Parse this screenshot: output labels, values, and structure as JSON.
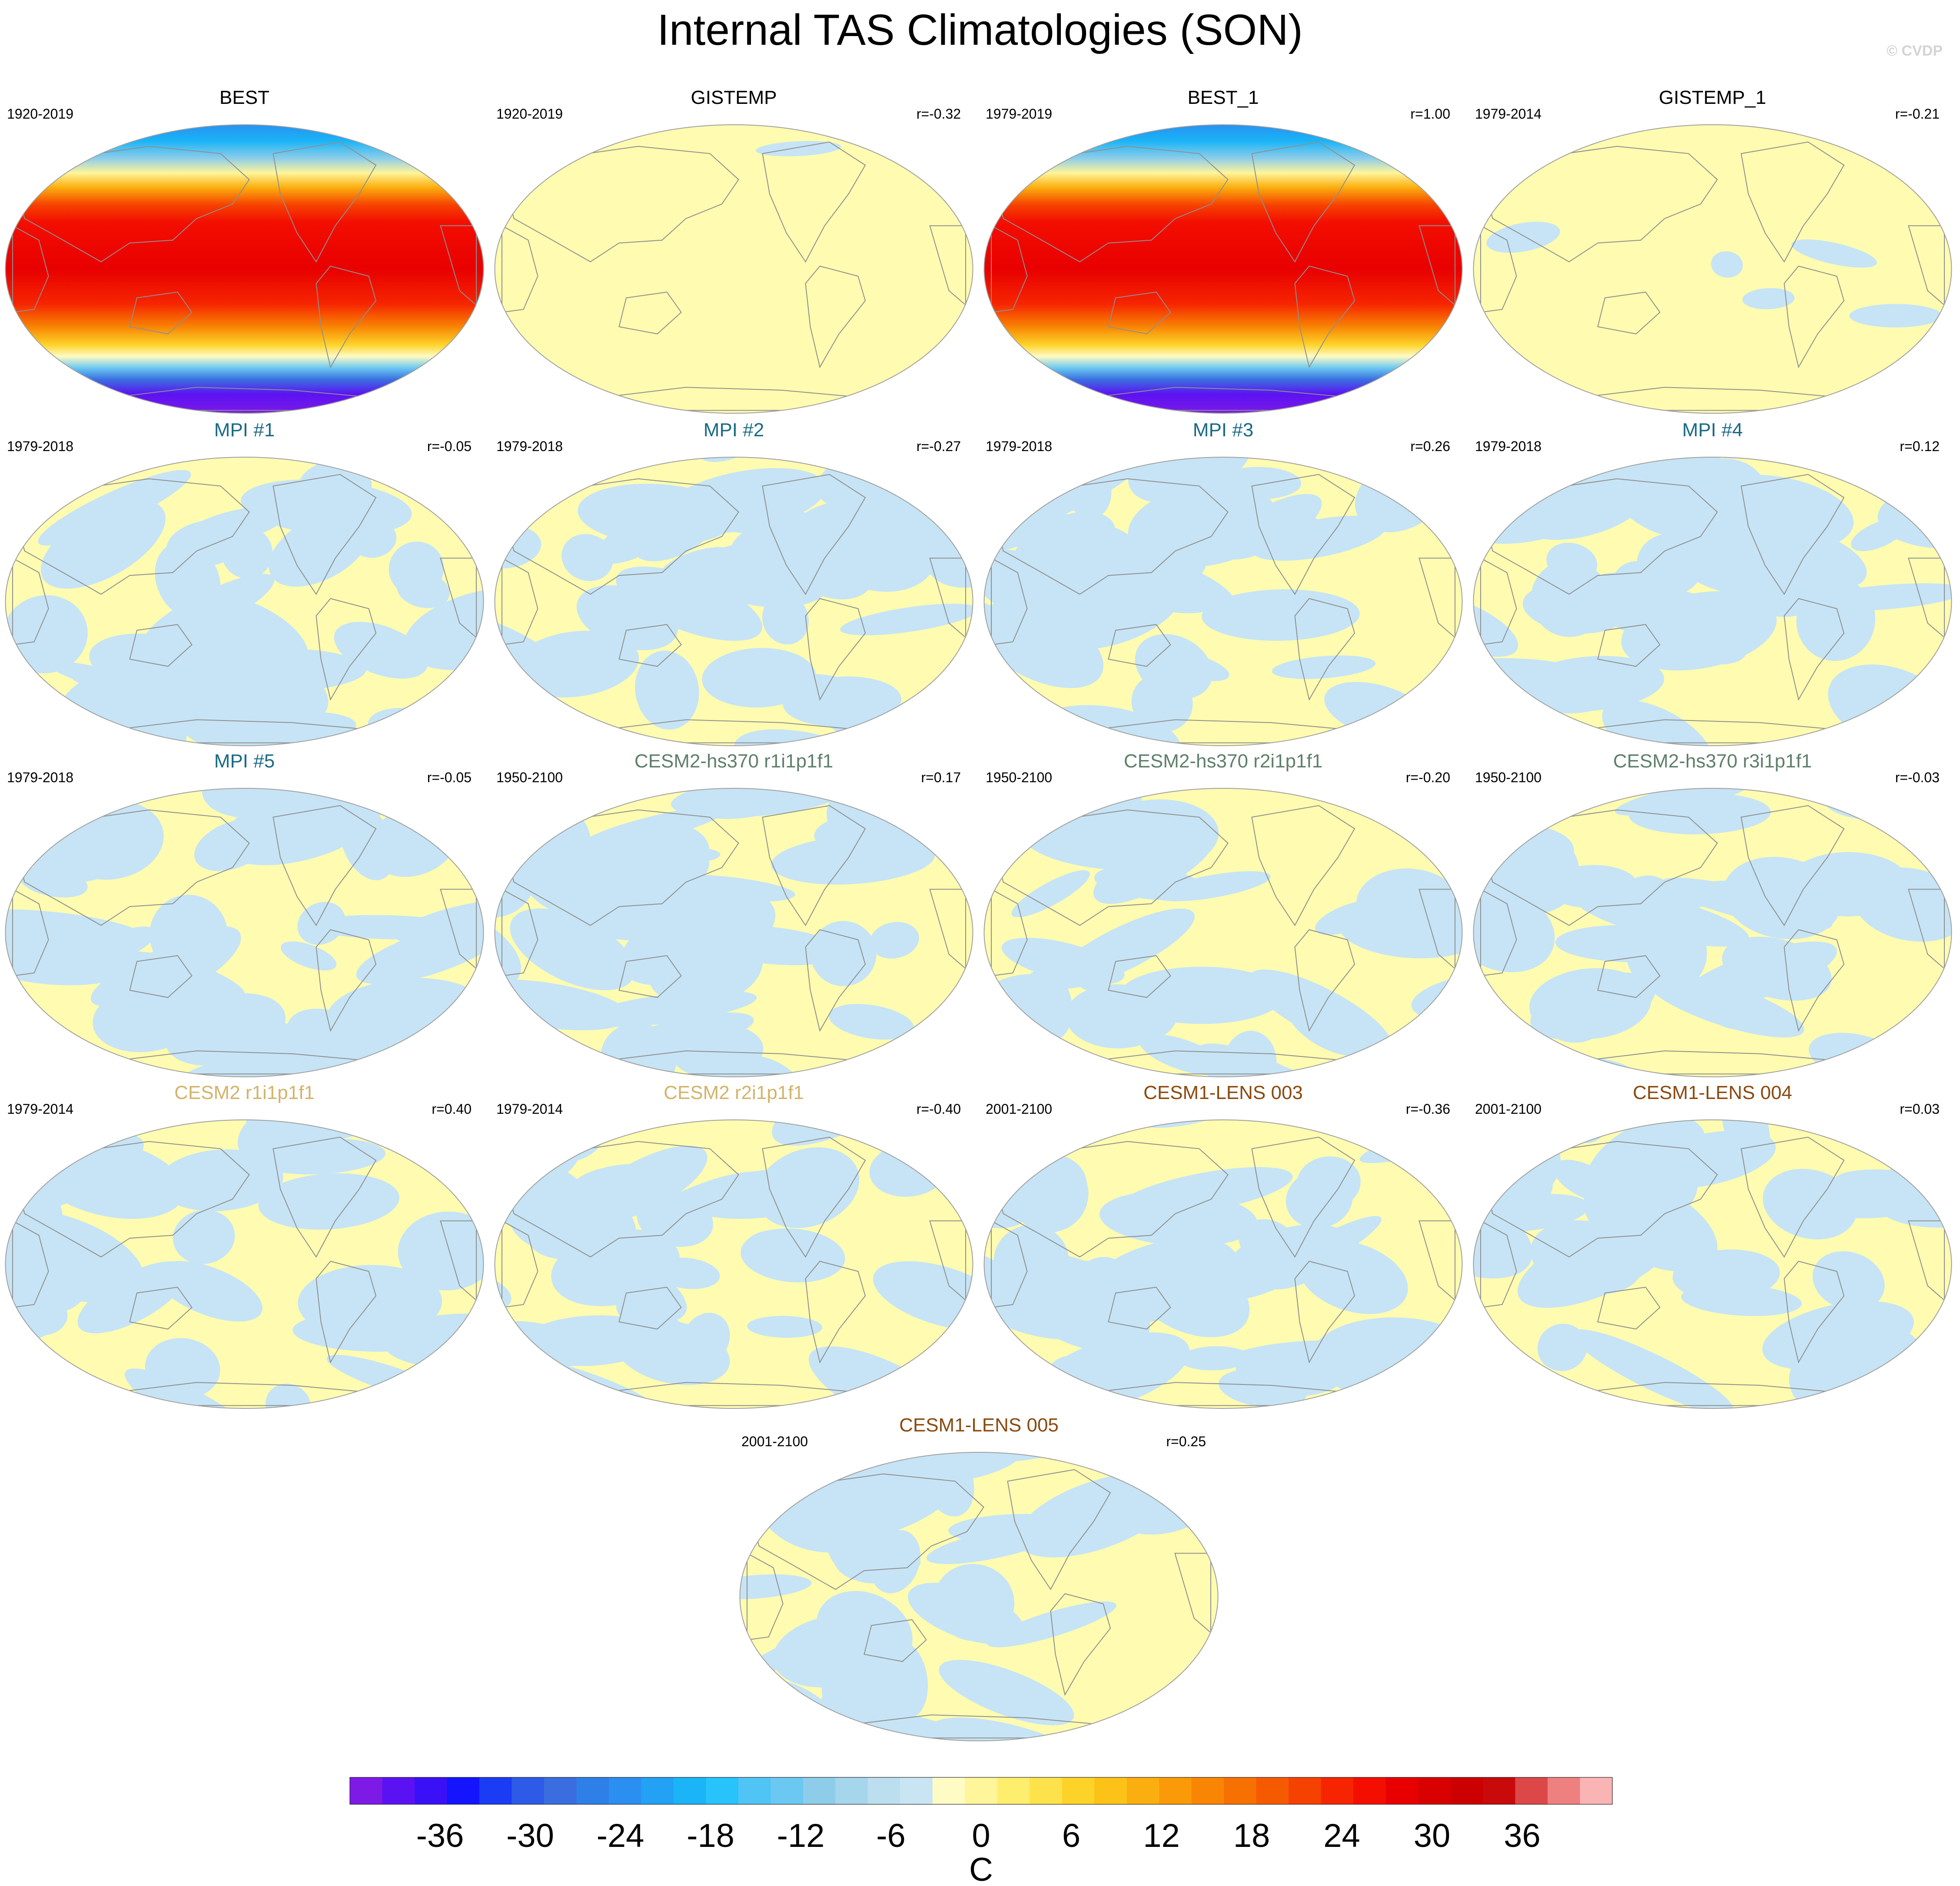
{
  "title": "Internal TAS Climatologies (SON)",
  "copyright": "© CVDP",
  "colors": {
    "warm_fill": "#fffbb0",
    "cool_fill": "#c6e4f5",
    "missing": "#ffffff",
    "coast": "#8f8f8f",
    "title_default": "#000000",
    "title_mpi": "#1a6a85",
    "title_cesm2_hs370": "#5f7f6a",
    "title_cesm2": "#d2b46a",
    "title_lens": "#8a4a0f"
  },
  "panels": [
    {
      "title": "BEST",
      "period": "1920-2019",
      "r": "",
      "kind": "full",
      "color": "#000000"
    },
    {
      "title": "GISTEMP",
      "period": "1920-2019",
      "r": "r=-0.32",
      "kind": "anom",
      "color": "#000000"
    },
    {
      "title": "BEST_1",
      "period": "1979-2019",
      "r": "r=1.00",
      "kind": "full",
      "color": "#000000"
    },
    {
      "title": "GISTEMP_1",
      "period": "1979-2014",
      "r": "r=-0.21",
      "kind": "anom",
      "color": "#000000"
    },
    {
      "title": "MPI #1",
      "period": "1979-2018",
      "r": "r=-0.05",
      "kind": "anom",
      "color": "#1a6a85"
    },
    {
      "title": "MPI #2",
      "period": "1979-2018",
      "r": "r=-0.27",
      "kind": "anom",
      "color": "#1a6a85"
    },
    {
      "title": "MPI #3",
      "period": "1979-2018",
      "r": "r=0.26",
      "kind": "anom",
      "color": "#1a6a85"
    },
    {
      "title": "MPI #4",
      "period": "1979-2018",
      "r": "r=0.12",
      "kind": "anom",
      "color": "#1a6a85"
    },
    {
      "title": "MPI #5",
      "period": "1979-2018",
      "r": "r=-0.05",
      "kind": "anom",
      "color": "#1a6a85"
    },
    {
      "title": "CESM2-hs370 r1i1p1f1",
      "period": "1950-2100",
      "r": "r=0.17",
      "kind": "anom",
      "color": "#5f7f6a"
    },
    {
      "title": "CESM2-hs370 r2i1p1f1",
      "period": "1950-2100",
      "r": "r=-0.20",
      "kind": "anom",
      "color": "#5f7f6a"
    },
    {
      "title": "CESM2-hs370 r3i1p1f1",
      "period": "1950-2100",
      "r": "r=-0.03",
      "kind": "anom",
      "color": "#5f7f6a"
    },
    {
      "title": "CESM2 r1i1p1f1",
      "period": "1979-2014",
      "r": "r=0.40",
      "kind": "anom",
      "color": "#d2b46a"
    },
    {
      "title": "CESM2 r2i1p1f1",
      "period": "1979-2014",
      "r": "r=-0.40",
      "kind": "anom",
      "color": "#d2b46a"
    },
    {
      "title": "CESM1-LENS 003",
      "period": "2001-2100",
      "r": "r=-0.36",
      "kind": "anom",
      "color": "#8a4a0f"
    },
    {
      "title": "CESM1-LENS 004",
      "period": "2001-2100",
      "r": "r=0.03",
      "kind": "anom",
      "color": "#8a4a0f"
    },
    {
      "title": "CESM1-LENS 005",
      "period": "2001-2100",
      "r": "r=0.25",
      "kind": "anom",
      "color": "#8a4a0f"
    }
  ],
  "chart_data": {
    "type": "heatmap",
    "title": "Internal TAS Climatologies (SON)",
    "projection": "robinson",
    "colorbar": {
      "unit": "C",
      "tick_labels": [
        "-36",
        "-30",
        "-24",
        "-18",
        "-12",
        "-6",
        "0",
        "6",
        "12",
        "18",
        "24",
        "30",
        "36"
      ],
      "tick_values": [
        -36,
        -30,
        -24,
        -18,
        -12,
        -6,
        0,
        6,
        12,
        18,
        24,
        30,
        36
      ],
      "levels_step": 2,
      "range": [
        -42,
        42
      ],
      "colors": [
        "#7e1ae6",
        "#5b12f2",
        "#3a10f7",
        "#1414ff",
        "#1a3cf5",
        "#2e5ae8",
        "#3a6ee0",
        "#2f7fe8",
        "#2a8ff0",
        "#23a1f5",
        "#1ab4f7",
        "#27c3fa",
        "#4fc4f5",
        "#6bc8f2",
        "#8dcde9",
        "#a6d6ec",
        "#bcdff0",
        "#c9e5f3",
        "#fffbc4",
        "#fff59a",
        "#fdee6e",
        "#fde24b",
        "#fdd32a",
        "#fcc217",
        "#fbae0f",
        "#fa9a08",
        "#f88604",
        "#f77002",
        "#f65a00",
        "#f64200",
        "#f62500",
        "#f30e00",
        "#e80000",
        "#d90000",
        "#cc0000",
        "#c80a0a",
        "#dc4848",
        "#ee8080",
        "#fab4b4"
      ]
    }
  }
}
